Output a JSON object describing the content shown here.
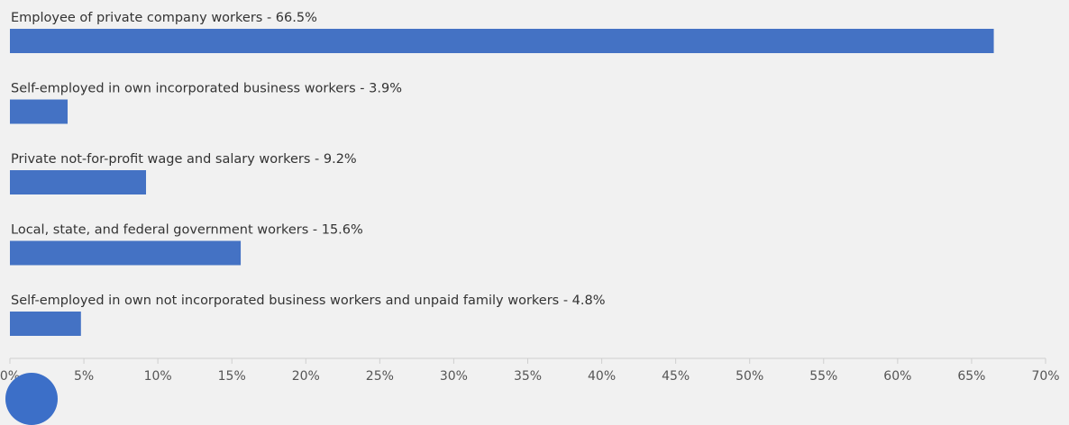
{
  "chart_data": {
    "type": "bar",
    "orientation": "horizontal",
    "categories": [
      "Employee of private company workers - 66.5%",
      "Self-employed in own incorporated business workers - 3.9%",
      "Private not-for-profit wage and salary workers - 9.2%",
      "Local, state, and federal government workers - 15.6%",
      "Self-employed in own not incorporated business workers and unpaid family workers - 4.8%"
    ],
    "values": [
      66.5,
      3.9,
      9.2,
      15.6,
      4.8
    ],
    "xlim": [
      0,
      70
    ],
    "xticks": [
      "0%",
      "5%",
      "10%",
      "15%",
      "20%",
      "25%",
      "30%",
      "35%",
      "40%",
      "45%",
      "50%",
      "55%",
      "60%",
      "65%",
      "70%"
    ],
    "grid": false,
    "colors": {
      "bar": "#4472c4",
      "background": "#f1f1f1"
    }
  }
}
